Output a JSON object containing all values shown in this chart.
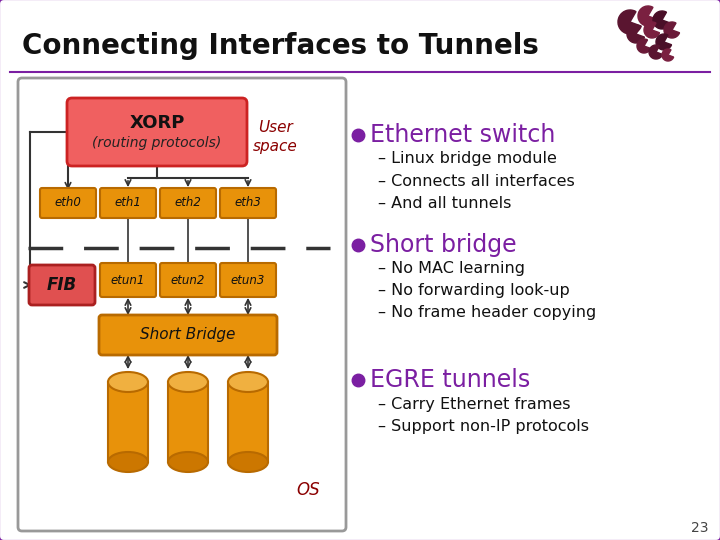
{
  "title": "Connecting Interfaces to Tunnels",
  "title_fontsize": 20,
  "border_color": "#7b1fa2",
  "xorp_label": "XORP",
  "xorp_sublabel": "(routing protocols)",
  "xorp_color": "#f06060",
  "xorp_border": "#cc2222",
  "eth_color": "#e8920a",
  "eth_border": "#b86a00",
  "etun_color": "#e8920a",
  "etun_border": "#b86a00",
  "fib_color": "#e05050",
  "fib_border": "#aa2020",
  "bridge_color": "#e8920a",
  "bridge_border": "#b86a00",
  "cyl_body_color": "#e8920a",
  "cyl_top_color": "#f0b040",
  "cyl_bot_color": "#cc7700",
  "cyl_edge_color": "#b86a00",
  "user_space_text": "User\nspace",
  "user_space_color": "#8b0000",
  "os_text": "OS",
  "os_color": "#8b0000",
  "eth_labels": [
    "eth0",
    "eth1",
    "eth2",
    "eth3"
  ],
  "etun_labels": [
    "etun1",
    "etun2",
    "etun3"
  ],
  "fib_label": "FIB",
  "bridge_label": "Short Bridge",
  "bullet_color": "#7b1fa2",
  "bullet1_title": "Ethernet switch",
  "bullet1_color": "#7b1fa2",
  "bullet1_items": [
    "– Linux bridge module",
    "– Connects all interfaces",
    "– And all tunnels"
  ],
  "bullet2_title": "Short bridge",
  "bullet2_color": "#7b1fa2",
  "bullet2_items": [
    "– No MAC learning",
    "– No forwarding look-up",
    "– No frame header copying"
  ],
  "bullet3_title": "EGRE tunnels",
  "bullet3_color": "#7b1fa2",
  "bullet3_items": [
    "– Carry Ethernet frames",
    "– Support non-IP protocols"
  ],
  "text_color": "#111111",
  "page_num": "23",
  "deco_colors": [
    "#4a0a1a",
    "#6a1a2a",
    "#5a0f22",
    "#7a1530",
    "#3a0815"
  ],
  "arrow_color": "#333333",
  "line_color": "#333333",
  "panel_border": "#7b1fa2",
  "inner_panel_border": "#999999"
}
